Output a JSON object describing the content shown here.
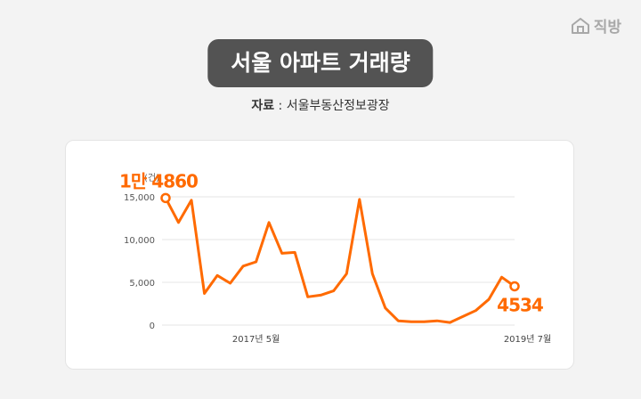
{
  "logo": {
    "text": "직방",
    "icon": "house-icon"
  },
  "title": "서울 아파트 거래량",
  "source": {
    "key": "자료",
    "separator": " : ",
    "value": "서울부동산정보광장"
  },
  "colors": {
    "line": "#ff6a00",
    "pill": "#535353",
    "grid": "#e6e6e6"
  },
  "chart_data": {
    "type": "line",
    "unit_label": "(건)",
    "ylim": [
      0,
      15000
    ],
    "yticks": [
      {
        "value": 15000,
        "label": "15,000"
      },
      {
        "value": 10000,
        "label": "10,000"
      },
      {
        "value": 5000,
        "label": "5,000"
      },
      {
        "value": 0,
        "label": "0"
      }
    ],
    "grid": "horizontal",
    "xtick_labels": [
      {
        "index": 7,
        "label": "2017년 5월"
      },
      {
        "index": 28,
        "label": "2019년 7월"
      }
    ],
    "series": [
      {
        "values": [
          14860,
          12000,
          14600,
          3700,
          5800,
          4900,
          6900,
          7400,
          12000,
          8400,
          8500,
          3300,
          3500,
          4000,
          6000,
          14700,
          6000,
          2000,
          500,
          400,
          400,
          500,
          300,
          1000,
          1700,
          3000,
          5600,
          4534
        ]
      }
    ],
    "annotations": [
      {
        "index": 0,
        "text": "1만 4860",
        "position": "top"
      },
      {
        "index": 27,
        "text": "4534",
        "position": "bottom"
      }
    ]
  }
}
